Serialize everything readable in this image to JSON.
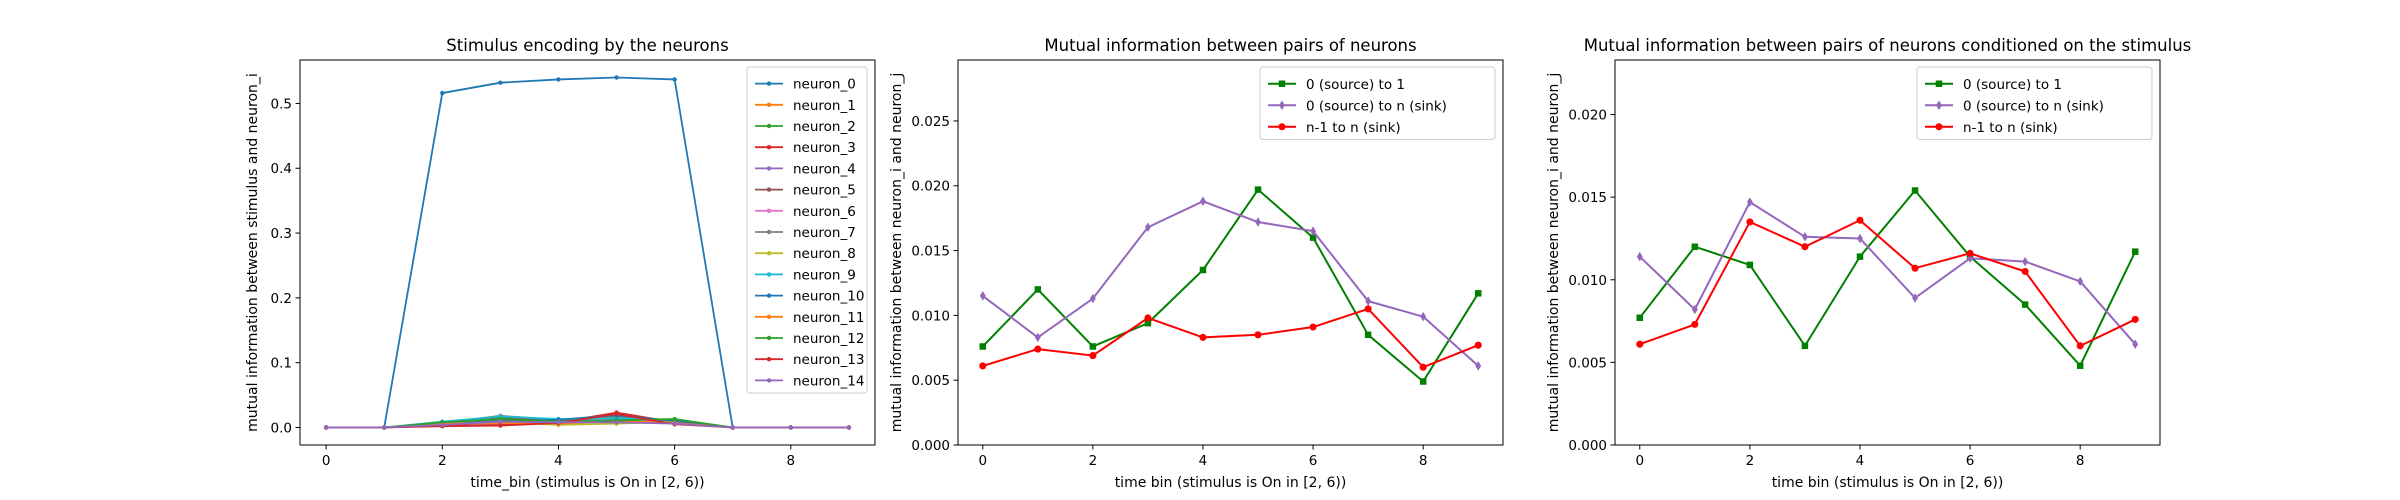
{
  "chart_data": [
    {
      "type": "line",
      "title": "Stimulus encoding by the neurons",
      "xlabel": "time_bin (stimulus is On in [2, 6))",
      "ylabel": "mutual information between stimulus and neuron_i",
      "xlim": [
        -0.45,
        9.45
      ],
      "ylim": [
        -0.027,
        0.567
      ],
      "xticks": [
        0,
        2,
        4,
        6,
        8
      ],
      "yticks": [
        0.0,
        0.1,
        0.2,
        0.3,
        0.4,
        0.5
      ],
      "ytick_labels": [
        "0.0",
        "0.1",
        "0.2",
        "0.3",
        "0.4",
        "0.5"
      ],
      "legend": "top-right",
      "x": [
        0,
        1,
        2,
        3,
        4,
        5,
        6,
        7,
        8,
        9
      ],
      "series": [
        {
          "name": "neuron_0",
          "color": "#1f77b4",
          "marker": "point",
          "values": [
            0,
            0,
            0.516,
            0.532,
            0.537,
            0.54,
            0.537,
            0,
            0,
            0
          ]
        },
        {
          "name": "neuron_1",
          "color": "#ff7f0e",
          "marker": "point",
          "values": [
            0,
            0,
            0.007,
            0.01,
            0.008,
            0.012,
            0.009,
            0,
            0,
            0
          ]
        },
        {
          "name": "neuron_2",
          "color": "#2ca02c",
          "marker": "point",
          "values": [
            0,
            0,
            0.006,
            0.014,
            0.01,
            0.015,
            0.012,
            0,
            0,
            0
          ]
        },
        {
          "name": "neuron_3",
          "color": "#d62728",
          "marker": "point",
          "values": [
            0,
            0,
            0.003,
            0.004,
            0.008,
            0.023,
            0.008,
            0,
            0,
            0
          ]
        },
        {
          "name": "neuron_4",
          "color": "#9467bd",
          "marker": "point",
          "values": [
            0,
            0,
            0.006,
            0.012,
            0.011,
            0.009,
            0.007,
            0,
            0,
            0
          ]
        },
        {
          "name": "neuron_5",
          "color": "#8c564b",
          "marker": "point",
          "values": [
            0,
            0,
            0.008,
            0.015,
            0.011,
            0.018,
            0.01,
            0,
            0,
            0
          ]
        },
        {
          "name": "neuron_6",
          "color": "#e377c2",
          "marker": "point",
          "values": [
            0,
            0,
            0.005,
            0.011,
            0.009,
            0.012,
            0.008,
            0,
            0,
            0
          ]
        },
        {
          "name": "neuron_7",
          "color": "#7f7f7f",
          "marker": "point",
          "values": [
            0,
            0,
            0.007,
            0.018,
            0.012,
            0.016,
            0.011,
            0,
            0,
            0
          ]
        },
        {
          "name": "neuron_8",
          "color": "#bcbd22",
          "marker": "point",
          "values": [
            0,
            0,
            0.006,
            0.008,
            0.004,
            0.006,
            0.009,
            0,
            0,
            0
          ]
        },
        {
          "name": "neuron_9",
          "color": "#17becf",
          "marker": "point",
          "values": [
            0,
            0,
            0.009,
            0.017,
            0.013,
            0.014,
            0.011,
            0,
            0,
            0
          ]
        },
        {
          "name": "neuron_10",
          "color": "#1f77b4",
          "marker": "point",
          "values": [
            0,
            0,
            0.005,
            0.01,
            0.012,
            0.019,
            0.01,
            0,
            0,
            0
          ]
        },
        {
          "name": "neuron_11",
          "color": "#ff7f0e",
          "marker": "point",
          "values": [
            0,
            0,
            0.006,
            0.007,
            0.006,
            0.01,
            0.007,
            0,
            0,
            0
          ]
        },
        {
          "name": "neuron_12",
          "color": "#2ca02c",
          "marker": "point",
          "values": [
            0,
            0,
            0.008,
            0.013,
            0.009,
            0.011,
            0.013,
            0,
            0,
            0
          ]
        },
        {
          "name": "neuron_13",
          "color": "#d62728",
          "marker": "point",
          "values": [
            0,
            0,
            0.002,
            0.003,
            0.007,
            0.021,
            0.005,
            0,
            0,
            0
          ]
        },
        {
          "name": "neuron_14",
          "color": "#9467bd",
          "marker": "point",
          "values": [
            0,
            0,
            0.004,
            0.009,
            0.008,
            0.008,
            0.006,
            0,
            0,
            0
          ]
        }
      ]
    },
    {
      "type": "line",
      "title": "Mutual information between pairs of neurons",
      "xlabel": "time bin (stimulus is On in [2, 6))",
      "ylabel": "mutual information between neuron_i and neuron_j",
      "xlim": [
        -0.45,
        9.45
      ],
      "ylim": [
        0,
        0.0297
      ],
      "xticks": [
        0,
        2,
        4,
        6,
        8
      ],
      "yticks": [
        0.0,
        0.005,
        0.01,
        0.015,
        0.02,
        0.025
      ],
      "ytick_labels": [
        "0.000",
        "0.005",
        "0.010",
        "0.015",
        "0.020",
        "0.025"
      ],
      "legend": "top-right",
      "x": [
        0,
        1,
        2,
        3,
        4,
        5,
        6,
        7,
        8,
        9
      ],
      "series": [
        {
          "name": "0 (source) to 1",
          "color": "#008000",
          "marker": "square",
          "values": [
            0.0076,
            0.012,
            0.0076,
            0.0094,
            0.0135,
            0.0197,
            0.016,
            0.0085,
            0.0049,
            0.0117
          ]
        },
        {
          "name": "0 (source) to n (sink)",
          "color": "#9467bd",
          "marker": "diamond",
          "values": [
            0.0115,
            0.0083,
            0.0113,
            0.0168,
            0.0188,
            0.0172,
            0.0165,
            0.0111,
            0.0099,
            0.0061
          ]
        },
        {
          "name": "n-1 to n (sink)",
          "color": "#ff0000",
          "marker": "circle",
          "values": [
            0.0061,
            0.0074,
            0.0069,
            0.0098,
            0.0083,
            0.0085,
            0.0091,
            0.0105,
            0.006,
            0.0077
          ]
        }
      ]
    },
    {
      "type": "line",
      "title": "Mutual information between pairs of neurons conditioned on the stimulus",
      "xlabel": "time bin (stimulus is On in [2, 6))",
      "ylabel": "mutual information between neuron_i and neuron_j",
      "xlim": [
        -0.45,
        9.45
      ],
      "ylim": [
        0,
        0.0233
      ],
      "xticks": [
        0,
        2,
        4,
        6,
        8
      ],
      "yticks": [
        0.0,
        0.005,
        0.01,
        0.015,
        0.02
      ],
      "ytick_labels": [
        "0.000",
        "0.005",
        "0.010",
        "0.015",
        "0.020"
      ],
      "legend": "top-right",
      "x": [
        0,
        1,
        2,
        3,
        4,
        5,
        6,
        7,
        8,
        9
      ],
      "series": [
        {
          "name": "0 (source) to 1",
          "color": "#008000",
          "marker": "square",
          "values": [
            0.0077,
            0.012,
            0.0109,
            0.006,
            0.0114,
            0.0154,
            0.0114,
            0.0085,
            0.0048,
            0.0117
          ]
        },
        {
          "name": "0 (source) to n (sink)",
          "color": "#9467bd",
          "marker": "diamond",
          "values": [
            0.0114,
            0.0082,
            0.0147,
            0.0126,
            0.0125,
            0.0089,
            0.0113,
            0.0111,
            0.0099,
            0.0061
          ]
        },
        {
          "name": "n-1 to n (sink)",
          "color": "#ff0000",
          "marker": "circle",
          "values": [
            0.0061,
            0.0073,
            0.0135,
            0.012,
            0.0136,
            0.0107,
            0.0116,
            0.0105,
            0.006,
            0.0076
          ]
        }
      ]
    }
  ]
}
